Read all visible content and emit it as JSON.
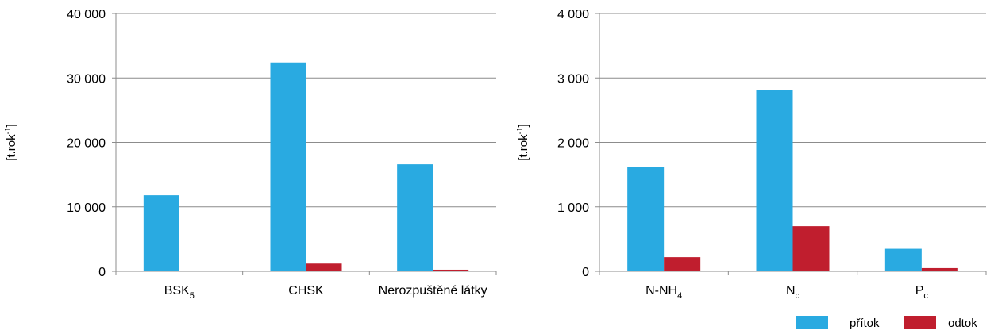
{
  "chart_data": [
    {
      "type": "bar",
      "ylabel": "[t.rok-1]",
      "ylabel_parts": {
        "base": "[t.rok",
        "sup": "-1",
        "end": "]"
      },
      "ylim": [
        0,
        40000
      ],
      "yticks": [
        0,
        10000,
        20000,
        30000,
        40000
      ],
      "ytick_labels": [
        "0",
        "10 000",
        "20 000",
        "30 000",
        "40 000"
      ],
      "grid": true,
      "categories": [
        {
          "base": "BSK",
          "sub": "5"
        },
        {
          "base": "CHSK",
          "sub": ""
        },
        {
          "base": "Nerozpuštěné látky",
          "sub": ""
        }
      ],
      "series": [
        {
          "name": "přítok",
          "color": "#29aae1",
          "values": [
            11800,
            32400,
            16600
          ]
        },
        {
          "name": "odtok",
          "color": "#c01e2e",
          "values": [
            80,
            1200,
            250
          ]
        }
      ]
    },
    {
      "type": "bar",
      "ylabel": "[t.rok-1]",
      "ylabel_parts": {
        "base": "[t.rok",
        "sup": "-1",
        "end": "]"
      },
      "ylim": [
        0,
        4000
      ],
      "yticks": [
        0,
        1000,
        2000,
        3000,
        4000
      ],
      "ytick_labels": [
        "0",
        "1 000",
        "2 000",
        "3 000",
        "4 000"
      ],
      "grid": true,
      "categories": [
        {
          "base": "N-NH",
          "sub": "4"
        },
        {
          "base": "N",
          "sub": "c"
        },
        {
          "base": "P",
          "sub": "c"
        }
      ],
      "series": [
        {
          "name": "přítok",
          "color": "#29aae1",
          "values": [
            1620,
            2810,
            350
          ]
        },
        {
          "name": "odtok",
          "color": "#c01e2e",
          "values": [
            220,
            700,
            50
          ]
        }
      ]
    }
  ],
  "legend": {
    "placement": "bottom-right",
    "items": [
      {
        "name": "přítok",
        "color": "#29aae1"
      },
      {
        "name": "odtok",
        "color": "#c01e2e"
      }
    ]
  }
}
